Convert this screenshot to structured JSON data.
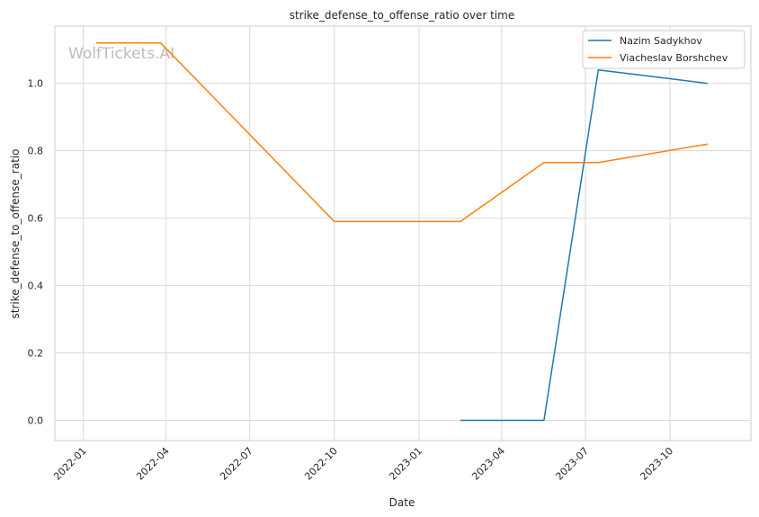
{
  "chart_data": {
    "type": "line",
    "title": "strike_defense_to_offense_ratio over time",
    "xlabel": "Date",
    "ylabel": "strike_defense_to_offense_ratio",
    "watermark": "WolfTickets.AI",
    "grid": true,
    "legend_position": "top-right",
    "xlim": [
      "2021-12-01",
      "2023-12-28"
    ],
    "ylim": [
      -0.06,
      1.17
    ],
    "x_ticks": [
      "2022-01",
      "2022-04",
      "2022-07",
      "2022-10",
      "2023-01",
      "2023-04",
      "2023-07",
      "2023-10"
    ],
    "y_ticks": [
      0.0,
      0.2,
      0.4,
      0.6,
      0.8,
      1.0
    ],
    "y_tick_labels": [
      "0.0",
      "0.2",
      "0.4",
      "0.6",
      "0.8",
      "1.0"
    ],
    "series": [
      {
        "name": "Nazim Sadykhov",
        "color": "#1f77b4",
        "x": [
          "2023-02-15",
          "2023-05-17",
          "2023-07-15",
          "2023-11-11"
        ],
        "y": [
          0.0,
          0.0,
          1.04,
          1.0
        ]
      },
      {
        "name": "Viacheslav Borshchev",
        "color": "#ff7f0e",
        "x": [
          "2022-01-15",
          "2022-03-26",
          "2022-10-01",
          "2023-02-15",
          "2023-05-17",
          "2023-07-15",
          "2023-11-11"
        ],
        "y": [
          1.12,
          1.12,
          0.59,
          0.59,
          0.765,
          0.765,
          0.82
        ]
      }
    ]
  }
}
